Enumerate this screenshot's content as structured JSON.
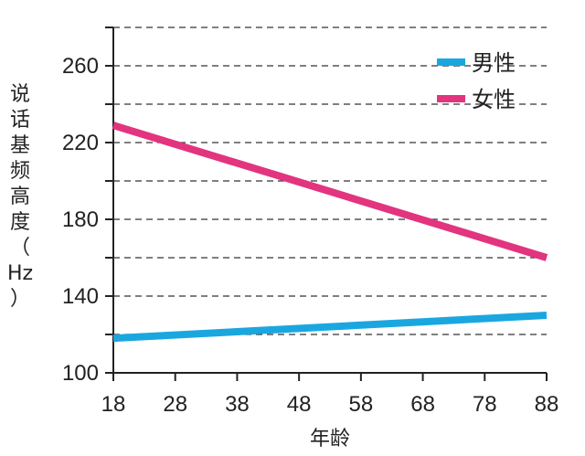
{
  "chart_data": {
    "type": "line",
    "title": "",
    "xlabel": "年龄",
    "ylabel_chars": [
      "说",
      "话",
      "基",
      "频",
      "高",
      "度",
      "（",
      "Hz",
      "）"
    ],
    "x_ticks": [
      18,
      28,
      38,
      48,
      58,
      68,
      78,
      88
    ],
    "y_ticks": [
      100,
      140,
      180,
      220,
      260
    ],
    "xlim": [
      18,
      88
    ],
    "ylim": [
      100,
      280
    ],
    "grid": "horizontal-dashed",
    "legend_position": "top-right",
    "series": [
      {
        "name": "男性",
        "color": "#1aa7e0",
        "x": [
          18,
          88
        ],
        "y": [
          118,
          130
        ]
      },
      {
        "name": "女性",
        "color": "#e2347f",
        "x": [
          18,
          88
        ],
        "y": [
          229,
          160
        ]
      }
    ]
  }
}
